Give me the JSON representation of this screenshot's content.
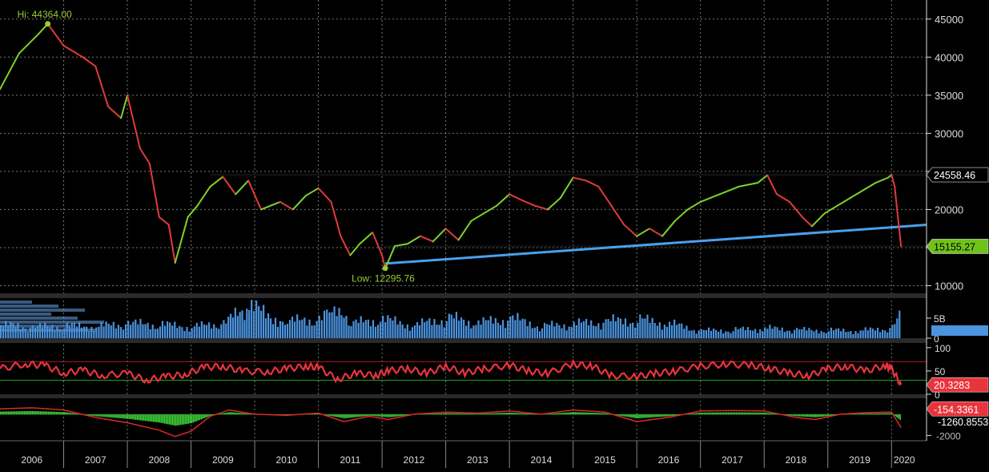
{
  "chart_data": {
    "type": "line",
    "x_years": [
      "2006",
      "2007",
      "2008",
      "2009",
      "2010",
      "2011",
      "2012",
      "2013",
      "2014",
      "2015",
      "2016",
      "2017",
      "2018",
      "2019",
      "2020"
    ],
    "price": {
      "yticks": [
        10000,
        15000,
        20000,
        25000,
        30000,
        35000,
        40000,
        45000
      ],
      "ytick_labels": [
        "10000",
        "15000",
        "20000",
        "25000",
        "30000",
        "35000",
        "40000",
        "45000"
      ],
      "ylim": [
        9000,
        47500
      ],
      "hi_label": "Hi: 44364.00",
      "low_label": "Low: 12295.76",
      "hi": {
        "date": 2006.75,
        "value": 44364
      },
      "low": {
        "date": 2012.05,
        "value": 12295.76
      },
      "last_label": "24558.46",
      "support_label": "15155.27",
      "resistance": {
        "value": 24558.46,
        "from": 2009.3,
        "to": 2020.4
      },
      "support": {
        "value": 15155.27,
        "from": 2012.05,
        "to": 2020.4
      },
      "trendline": {
        "from": [
          2012.05,
          12900
        ],
        "to": [
          2020.4,
          17900
        ]
      },
      "series": [
        {
          "x": 2006.0,
          "y": 35800
        },
        {
          "x": 2006.3,
          "y": 40500
        },
        {
          "x": 2006.6,
          "y": 43000
        },
        {
          "x": 2006.75,
          "y": 44364
        },
        {
          "x": 2007.0,
          "y": 41500
        },
        {
          "x": 2007.3,
          "y": 40000
        },
        {
          "x": 2007.5,
          "y": 38800
        },
        {
          "x": 2007.7,
          "y": 33500
        },
        {
          "x": 2007.9,
          "y": 32000
        },
        {
          "x": 2008.0,
          "y": 35000
        },
        {
          "x": 2008.2,
          "y": 28000
        },
        {
          "x": 2008.35,
          "y": 26000
        },
        {
          "x": 2008.5,
          "y": 19000
        },
        {
          "x": 2008.65,
          "y": 18000
        },
        {
          "x": 2008.75,
          "y": 13000
        },
        {
          "x": 2008.95,
          "y": 19000
        },
        {
          "x": 2009.1,
          "y": 20500
        },
        {
          "x": 2009.3,
          "y": 23000
        },
        {
          "x": 2009.5,
          "y": 24300
        },
        {
          "x": 2009.7,
          "y": 22000
        },
        {
          "x": 2009.9,
          "y": 23800
        },
        {
          "x": 2010.1,
          "y": 20000
        },
        {
          "x": 2010.4,
          "y": 21000
        },
        {
          "x": 2010.6,
          "y": 20000
        },
        {
          "x": 2010.8,
          "y": 21800
        },
        {
          "x": 2011.0,
          "y": 22800
        },
        {
          "x": 2011.2,
          "y": 21000
        },
        {
          "x": 2011.35,
          "y": 16500
        },
        {
          "x": 2011.5,
          "y": 14000
        },
        {
          "x": 2011.65,
          "y": 15500
        },
        {
          "x": 2011.85,
          "y": 17000
        },
        {
          "x": 2012.0,
          "y": 14000
        },
        {
          "x": 2012.05,
          "y": 12295.76
        },
        {
          "x": 2012.2,
          "y": 15200
        },
        {
          "x": 2012.4,
          "y": 15500
        },
        {
          "x": 2012.6,
          "y": 16500
        },
        {
          "x": 2012.8,
          "y": 15800
        },
        {
          "x": 2013.0,
          "y": 17500
        },
        {
          "x": 2013.2,
          "y": 16000
        },
        {
          "x": 2013.4,
          "y": 18500
        },
        {
          "x": 2013.6,
          "y": 19500
        },
        {
          "x": 2013.8,
          "y": 20500
        },
        {
          "x": 2014.0,
          "y": 22000
        },
        {
          "x": 2014.2,
          "y": 21200
        },
        {
          "x": 2014.4,
          "y": 20500
        },
        {
          "x": 2014.6,
          "y": 20000
        },
        {
          "x": 2014.8,
          "y": 21500
        },
        {
          "x": 2015.0,
          "y": 24200
        },
        {
          "x": 2015.2,
          "y": 23800
        },
        {
          "x": 2015.4,
          "y": 23000
        },
        {
          "x": 2015.6,
          "y": 20500
        },
        {
          "x": 2015.8,
          "y": 18000
        },
        {
          "x": 2016.0,
          "y": 16500
        },
        {
          "x": 2016.2,
          "y": 17500
        },
        {
          "x": 2016.4,
          "y": 16500
        },
        {
          "x": 2016.6,
          "y": 18500
        },
        {
          "x": 2016.8,
          "y": 20000
        },
        {
          "x": 2017.0,
          "y": 21000
        },
        {
          "x": 2017.3,
          "y": 22000
        },
        {
          "x": 2017.6,
          "y": 23000
        },
        {
          "x": 2017.9,
          "y": 23500
        },
        {
          "x": 2018.05,
          "y": 24500
        },
        {
          "x": 2018.2,
          "y": 22000
        },
        {
          "x": 2018.4,
          "y": 21000
        },
        {
          "x": 2018.6,
          "y": 19000
        },
        {
          "x": 2018.75,
          "y": 17800
        },
        {
          "x": 2018.95,
          "y": 19500
        },
        {
          "x": 2019.15,
          "y": 20500
        },
        {
          "x": 2019.35,
          "y": 21500
        },
        {
          "x": 2019.55,
          "y": 22500
        },
        {
          "x": 2019.75,
          "y": 23500
        },
        {
          "x": 2019.95,
          "y": 24200
        },
        {
          "x": 2020.0,
          "y": 24558.46
        },
        {
          "x": 2020.05,
          "y": 23000
        },
        {
          "x": 2020.1,
          "y": 19000
        },
        {
          "x": 2020.15,
          "y": 15155.27
        }
      ]
    },
    "volume": {
      "ytick_labels": [
        "5B",
        "0"
      ],
      "yticks": [
        5,
        0
      ],
      "ylim": [
        0,
        10
      ],
      "series": [
        {
          "x": 2006.0,
          "y": 3.2
        },
        {
          "x": 2006.5,
          "y": 2.6
        },
        {
          "x": 2007.0,
          "y": 3.0
        },
        {
          "x": 2007.5,
          "y": 2.8
        },
        {
          "x": 2008.0,
          "y": 3.5
        },
        {
          "x": 2008.5,
          "y": 3.3
        },
        {
          "x": 2009.0,
          "y": 2.7
        },
        {
          "x": 2009.5,
          "y": 3.6
        },
        {
          "x": 2009.9,
          "y": 7.5
        },
        {
          "x": 2010.5,
          "y": 4.0
        },
        {
          "x": 2011.0,
          "y": 4.5
        },
        {
          "x": 2011.2,
          "y": 6.5
        },
        {
          "x": 2011.5,
          "y": 3.5
        },
        {
          "x": 2012.0,
          "y": 4.5
        },
        {
          "x": 2012.5,
          "y": 3.0
        },
        {
          "x": 2013.0,
          "y": 5.0
        },
        {
          "x": 2013.5,
          "y": 3.6
        },
        {
          "x": 2014.0,
          "y": 4.8
        },
        {
          "x": 2014.5,
          "y": 2.9
        },
        {
          "x": 2015.0,
          "y": 3.4
        },
        {
          "x": 2015.5,
          "y": 4.0
        },
        {
          "x": 2016.0,
          "y": 4.5
        },
        {
          "x": 2016.5,
          "y": 3.5
        },
        {
          "x": 2017.0,
          "y": 1.8
        },
        {
          "x": 2017.5,
          "y": 2.0
        },
        {
          "x": 2018.0,
          "y": 2.4
        },
        {
          "x": 2018.5,
          "y": 2.0
        },
        {
          "x": 2019.0,
          "y": 1.9
        },
        {
          "x": 2019.5,
          "y": 1.8
        },
        {
          "x": 2020.0,
          "y": 2.5
        },
        {
          "x": 2020.15,
          "y": 5.8
        }
      ]
    },
    "rsi": {
      "ytick_labels": [
        "100",
        "50",
        "0"
      ],
      "yticks": [
        100,
        50,
        0
      ],
      "ylim": [
        0,
        110
      ],
      "upper": 70,
      "lower": 30,
      "last_label": "20.3283",
      "series": [
        {
          "x": 2006.0,
          "y": 55
        },
        {
          "x": 2006.4,
          "y": 65
        },
        {
          "x": 2006.7,
          "y": 62
        },
        {
          "x": 2007.0,
          "y": 45
        },
        {
          "x": 2007.3,
          "y": 52
        },
        {
          "x": 2007.6,
          "y": 40
        },
        {
          "x": 2008.0,
          "y": 45
        },
        {
          "x": 2008.3,
          "y": 30
        },
        {
          "x": 2008.6,
          "y": 38
        },
        {
          "x": 2008.9,
          "y": 42
        },
        {
          "x": 2009.2,
          "y": 58
        },
        {
          "x": 2009.5,
          "y": 60
        },
        {
          "x": 2009.8,
          "y": 50
        },
        {
          "x": 2010.2,
          "y": 48
        },
        {
          "x": 2010.5,
          "y": 55
        },
        {
          "x": 2010.8,
          "y": 60
        },
        {
          "x": 2011.0,
          "y": 58
        },
        {
          "x": 2011.3,
          "y": 32
        },
        {
          "x": 2011.6,
          "y": 45
        },
        {
          "x": 2011.9,
          "y": 40
        },
        {
          "x": 2012.1,
          "y": 50
        },
        {
          "x": 2012.4,
          "y": 55
        },
        {
          "x": 2012.7,
          "y": 45
        },
        {
          "x": 2013.0,
          "y": 60
        },
        {
          "x": 2013.3,
          "y": 45
        },
        {
          "x": 2013.6,
          "y": 55
        },
        {
          "x": 2014.0,
          "y": 62
        },
        {
          "x": 2014.3,
          "y": 50
        },
        {
          "x": 2014.6,
          "y": 45
        },
        {
          "x": 2015.0,
          "y": 65
        },
        {
          "x": 2015.3,
          "y": 60
        },
        {
          "x": 2015.6,
          "y": 40
        },
        {
          "x": 2016.0,
          "y": 38
        },
        {
          "x": 2016.3,
          "y": 45
        },
        {
          "x": 2016.6,
          "y": 50
        },
        {
          "x": 2017.0,
          "y": 60
        },
        {
          "x": 2017.4,
          "y": 65
        },
        {
          "x": 2017.8,
          "y": 62
        },
        {
          "x": 2018.1,
          "y": 55
        },
        {
          "x": 2018.4,
          "y": 45
        },
        {
          "x": 2018.7,
          "y": 40
        },
        {
          "x": 2019.0,
          "y": 55
        },
        {
          "x": 2019.3,
          "y": 60
        },
        {
          "x": 2019.6,
          "y": 50
        },
        {
          "x": 2019.9,
          "y": 62
        },
        {
          "x": 2020.0,
          "y": 55
        },
        {
          "x": 2020.15,
          "y": 20.3283
        }
      ]
    },
    "macd": {
      "ytick_labels": [
        "-2000"
      ],
      "yticks": [
        -2000
      ],
      "ylim": [
        -2500,
        1500
      ],
      "last_label": "-1260.8553",
      "signal_label": "-154.3361",
      "macd_series": [
        {
          "x": 2006.0,
          "y": 500
        },
        {
          "x": 2006.5,
          "y": 600
        },
        {
          "x": 2007.0,
          "y": 400
        },
        {
          "x": 2007.5,
          "y": -300
        },
        {
          "x": 2008.0,
          "y": -800
        },
        {
          "x": 2008.5,
          "y": -1500
        },
        {
          "x": 2008.75,
          "y": -2100
        },
        {
          "x": 2009.0,
          "y": -1600
        },
        {
          "x": 2009.3,
          "y": -200
        },
        {
          "x": 2009.6,
          "y": 400
        },
        {
          "x": 2010.0,
          "y": 0
        },
        {
          "x": 2010.5,
          "y": -100
        },
        {
          "x": 2011.0,
          "y": 100
        },
        {
          "x": 2011.4,
          "y": -700
        },
        {
          "x": 2011.8,
          "y": -200
        },
        {
          "x": 2012.1,
          "y": -500
        },
        {
          "x": 2012.5,
          "y": 0
        },
        {
          "x": 2013.0,
          "y": 200
        },
        {
          "x": 2013.5,
          "y": 100
        },
        {
          "x": 2014.0,
          "y": 300
        },
        {
          "x": 2014.5,
          "y": 0
        },
        {
          "x": 2015.0,
          "y": 400
        },
        {
          "x": 2015.5,
          "y": 200
        },
        {
          "x": 2016.0,
          "y": -700
        },
        {
          "x": 2016.5,
          "y": -300
        },
        {
          "x": 2017.0,
          "y": 300
        },
        {
          "x": 2017.5,
          "y": 350
        },
        {
          "x": 2018.0,
          "y": 300
        },
        {
          "x": 2018.5,
          "y": -300
        },
        {
          "x": 2018.8,
          "y": -500
        },
        {
          "x": 2019.2,
          "y": 0
        },
        {
          "x": 2019.6,
          "y": 150
        },
        {
          "x": 2020.0,
          "y": 200
        },
        {
          "x": 2020.15,
          "y": -1260.8553
        }
      ]
    }
  }
}
